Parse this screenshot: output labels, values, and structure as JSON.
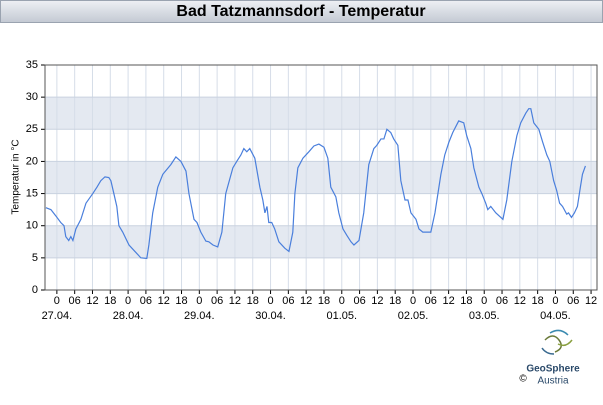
{
  "chart_data": {
    "type": "line",
    "title": "Bad Tatzmannsdorf - Temperatur",
    "ylabel": "Temperatur in °C",
    "x": [
      -3.7,
      -2,
      -0.3,
      1.3,
      2.4,
      3,
      4,
      4.7,
      5.4,
      6.4,
      8.1,
      9.8,
      12.1,
      13.5,
      14.8,
      16.2,
      17.5,
      18.2,
      19.2,
      20.2,
      20.9,
      22.2,
      24.3,
      26.3,
      28.3,
      30.3,
      31,
      32.3,
      34,
      35.7,
      38.4,
      40.1,
      41.8,
      43.5,
      44.5,
      46.2,
      47.2,
      48.5,
      50.2,
      51.2,
      52.6,
      54.2,
      55.6,
      56.9,
      59.3,
      60.6,
      62,
      63,
      64,
      65,
      66.7,
      68.4,
      69.4,
      70.1,
      70.8,
      71.4,
      72.4,
      73.4,
      74.8,
      76.8,
      78.2,
      79.5,
      80.2,
      81.2,
      82.9,
      84.9,
      86.6,
      88.3,
      90,
      91.3,
      92.3,
      94,
      95,
      96.4,
      97.7,
      99.1,
      100.1,
      101.8,
      103.4,
      105.1,
      106.8,
      107.8,
      109.2,
      110.2,
      111.2,
      112.5,
      113.5,
      114.9,
      115.9,
      117.3,
      118.3,
      119.3,
      121,
      122,
      123.3,
      126,
      127.4,
      129.4,
      130.7,
      132.1,
      133.4,
      135.4,
      137.1,
      138.1,
      139.5,
      140.5,
      142.2,
      143.2,
      144.5,
      145.2,
      146.2,
      147.9,
      150.3,
      151.6,
      153.3,
      155,
      156.3,
      158,
      159,
      159.7,
      160.7,
      162.4,
      163.7,
      165.1,
      166.1,
      167.4,
      168.4,
      169.4,
      170.4,
      171.8,
      172.4,
      173.4,
      174.4,
      175.4,
      176.4,
      177.1,
      178.1
    ],
    "values": [
      12.8,
      12.5,
      11.5,
      10.5,
      10,
      8.3,
      7.7,
      8.3,
      7.7,
      9.5,
      11,
      13.5,
      15,
      16,
      17,
      17.6,
      17.5,
      17,
      15,
      13,
      10,
      9,
      7,
      6,
      5,
      4.9,
      7,
      12,
      16,
      18,
      19.5,
      20.7,
      20,
      18.5,
      15,
      11,
      10.5,
      9,
      7.6,
      7.5,
      7,
      6.7,
      9,
      15,
      19,
      20,
      21,
      22,
      21.5,
      22,
      20.5,
      16,
      14,
      12,
      13,
      10.5,
      10.5,
      9.5,
      7.5,
      6.5,
      6,
      9,
      15,
      19,
      20.5,
      21.5,
      22.4,
      22.7,
      22.2,
      20.5,
      16,
      14.5,
      12,
      9.5,
      8.5,
      7.5,
      7,
      7.7,
      12,
      19.5,
      22,
      22.5,
      23.5,
      23.5,
      25,
      24.5,
      23.5,
      22.5,
      17,
      14,
      14,
      12,
      11,
      9.5,
      9,
      9,
      12,
      18,
      21,
      23,
      24.5,
      26.3,
      26,
      24,
      22,
      19,
      16,
      15,
      13.5,
      12.5,
      13,
      12,
      11,
      14,
      20,
      24,
      26,
      27.5,
      28.2,
      28.2,
      26,
      25,
      23,
      21,
      20,
      17,
      15.5,
      13.5,
      13,
      11.8,
      12,
      11.3,
      12,
      13,
      16,
      18,
      19.3
    ],
    "color": "#4a7fdc",
    "xlim": [
      -4,
      182
    ],
    "ylim": [
      0,
      35
    ],
    "yticks": [
      0,
      5,
      10,
      15,
      20,
      25,
      30,
      35
    ],
    "xticks": [
      0,
      {
        "value": 6,
        "label": "06"
      },
      12,
      18,
      {
        "value": 24,
        "label": "0"
      },
      {
        "value": 30,
        "label": "06"
      },
      {
        "value": 36,
        "label": "12"
      },
      {
        "value": 42,
        "label": "18"
      },
      {
        "value": 48,
        "label": "0"
      },
      {
        "value": 54,
        "label": "06"
      },
      {
        "value": 60,
        "label": "12"
      },
      {
        "value": 66,
        "label": "18"
      },
      {
        "value": 72,
        "label": "0"
      },
      {
        "value": 78,
        "label": "06"
      },
      {
        "value": 84,
        "label": "12"
      },
      {
        "value": 90,
        "label": "18"
      },
      {
        "value": 96,
        "label": "0"
      },
      {
        "value": 102,
        "label": "06"
      },
      {
        "value": 108,
        "label": "12"
      },
      {
        "value": 114,
        "label": "18"
      },
      {
        "value": 120,
        "label": "0"
      },
      {
        "value": 126,
        "label": "06"
      },
      {
        "value": 132,
        "label": "12"
      },
      {
        "value": 138,
        "label": "18"
      },
      {
        "value": 144,
        "label": "0"
      },
      {
        "value": 150,
        "label": "06"
      },
      {
        "value": 156,
        "label": "12"
      },
      {
        "value": 162,
        "label": "18"
      },
      {
        "value": 168,
        "label": "0"
      },
      {
        "value": 174,
        "label": "06"
      },
      {
        "value": 180,
        "label": "12"
      }
    ],
    "xtick_dates": [
      {
        "value": 0,
        "label": "27.04."
      },
      {
        "value": 24,
        "label": "28.04."
      },
      {
        "value": 48,
        "label": "29.04."
      },
      {
        "value": 72,
        "label": "30.04."
      },
      {
        "value": 96,
        "label": "01.05."
      },
      {
        "value": 120,
        "label": "02.05."
      },
      {
        "value": 144,
        "label": "03.05."
      },
      {
        "value": 168,
        "label": "04.05."
      }
    ],
    "grid": true,
    "band_color": "#e4e9f1"
  },
  "footer": {
    "copyright": "©",
    "brand": "GeoSphere",
    "country": "Austria"
  }
}
